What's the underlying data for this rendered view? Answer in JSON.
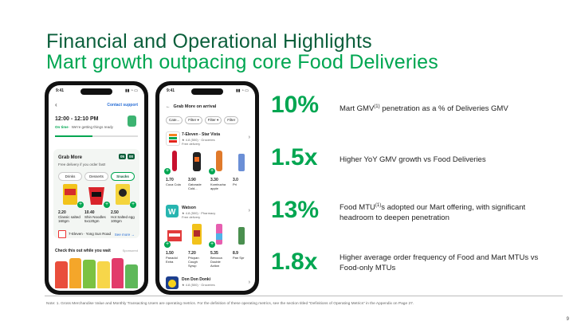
{
  "slide": {
    "title": "Financial and Operational Highlights",
    "subtitle": "Mart growth outpacing core Food Deliveries",
    "page_number": "9",
    "footnote": "Note: 1. Gross Merchandise Value and Monthly Transacting Users are operating metrics. For the definition of these operating metrics, see the section titled \"Definitions of Operating Metrics\" in the Appendix on Page 27."
  },
  "stats": [
    {
      "value": "10%",
      "text_pre": "Mart GMV",
      "sup": "(1)",
      "text_post": " penetration as a % of Deliveries GMV"
    },
    {
      "value": "1.5x",
      "text_pre": "Higher YoY GMV growth vs Food Deliveries",
      "sup": "",
      "text_post": ""
    },
    {
      "value": "13%",
      "text_pre": "Food MTU",
      "sup": "(1)",
      "text_post": "s adopted our Mart offering, with significant headroom to deepen penetration"
    },
    {
      "value": "1.8x",
      "text_pre": "Higher average order frequency of Food and Mart MTUs vs Food-only MTUs",
      "sup": "",
      "text_post": ""
    }
  ],
  "phone1": {
    "status_time": "9:41",
    "contact_support": "Contact support",
    "delivery_window": "12:00 - 12:10 PM",
    "on_time": "On time",
    "on_time_note": " · We're getting things ready",
    "grab_more": "Grab More",
    "grab_more_sub": "Free delivery if you order fast!",
    "badge1": "05",
    "badge2": "00",
    "tabs": [
      "Drinks",
      "Desserts",
      "Snacks"
    ],
    "products": [
      {
        "price": "2.20",
        "name": "Classic salted",
        "unit": "160gm"
      },
      {
        "price": "10.40",
        "name": "Shin Noodles",
        "unit": "5x120gm"
      },
      {
        "price": "2.50",
        "name": "Hot Salted egg",
        "unit": "100gm"
      }
    ],
    "store_name": "7-Eleven · Yong Sun Road",
    "see_more": "See more →",
    "check_out": "Check this out while you wait",
    "sponsored": "Sponsored"
  },
  "phone2": {
    "status_time": "9:41",
    "header": "Grab More on arrival",
    "filters": [
      "Cate...",
      "Filter ▾",
      "Filter ▾",
      "Filter"
    ],
    "stores": [
      {
        "name": "7-Eleven - Star Vista",
        "meta": "★ 4.8 (500) · Groceries",
        "delivery": "Free delivery",
        "items": [
          {
            "price": "1.70",
            "name": "Coca Cola"
          },
          {
            "price": "3.90",
            "name": "Gatorade Cold..."
          },
          {
            "price": "3.30",
            "name": "Kombucha apple"
          },
          {
            "price": "3.0",
            "name": "Pri"
          }
        ]
      },
      {
        "name": "Watson",
        "meta": "★ 4.8 (500) · Pharmacy",
        "delivery": "Free delivery",
        "items": [
          {
            "price": "1.50",
            "name": "Panadol Extra"
          },
          {
            "price": "7.20",
            "name": "Pricpan Cough Syrup"
          },
          {
            "price": "5.35",
            "name": "Berocca Double Action"
          },
          {
            "price": "8.9",
            "name": "Pan Spr"
          }
        ]
      },
      {
        "name": "Don Don Donki",
        "meta": "★ 4.8 (500) · Groceries",
        "delivery": "",
        "items": []
      }
    ]
  },
  "colors": {
    "dark_green": "#0b5f3b",
    "green": "#00a651",
    "text": "#222222"
  }
}
